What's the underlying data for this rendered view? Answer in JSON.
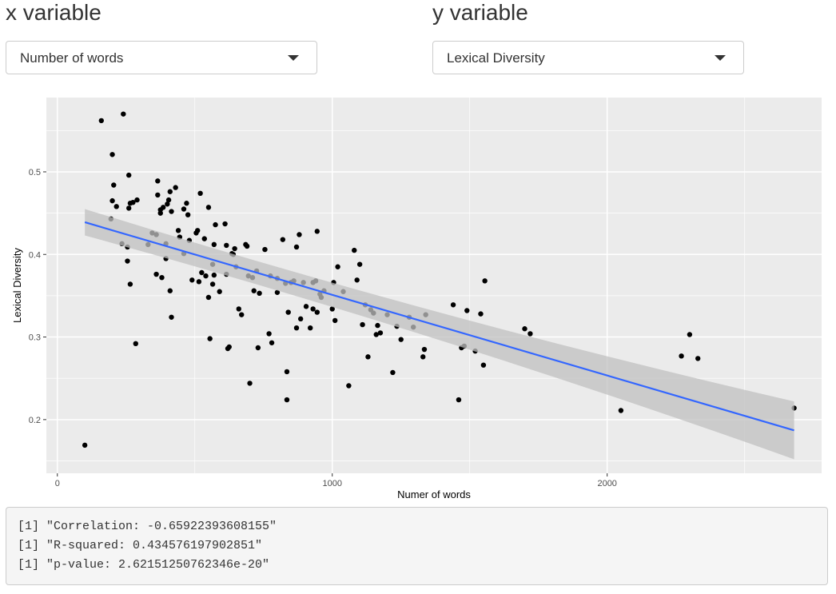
{
  "controls": {
    "x_label": "x variable",
    "x_value": "Number of words",
    "y_label": "y variable",
    "y_value": "Lexical Diversity"
  },
  "output_lines": [
    "[1] \"Correlation: -0.65922393608155\"",
    "[1] \"R-squared: 0.434576197902851\"",
    "[1] \"p-value: 2.62151250762346e-20\""
  ],
  "colors": {
    "panel": "#ebebeb",
    "grid": "#ffffff",
    "point": "#000000",
    "line": "#3366ff",
    "ribbon": "#c0c0c0"
  },
  "chart_data": {
    "type": "scatter",
    "xlabel": "Numer of words",
    "ylabel": "Lexical Diversity",
    "xlim": [
      -40,
      2780
    ],
    "ylim": [
      0.135,
      0.59
    ],
    "xticks": [
      0,
      1000,
      2000
    ],
    "yticks": [
      0.2,
      0.3,
      0.4,
      0.5
    ],
    "grid": true,
    "points": [
      [
        100,
        0.169
      ],
      [
        160,
        0.562
      ],
      [
        240,
        0.57
      ],
      [
        200,
        0.521
      ],
      [
        195,
        0.443
      ],
      [
        205,
        0.484
      ],
      [
        200,
        0.465
      ],
      [
        215,
        0.458
      ],
      [
        235,
        0.413
      ],
      [
        255,
        0.409
      ],
      [
        255,
        0.392
      ],
      [
        260,
        0.496
      ],
      [
        260,
        0.456
      ],
      [
        265,
        0.462
      ],
      [
        265,
        0.364
      ],
      [
        275,
        0.463
      ],
      [
        285,
        0.292
      ],
      [
        290,
        0.466
      ],
      [
        330,
        0.412
      ],
      [
        345,
        0.426
      ],
      [
        360,
        0.376
      ],
      [
        360,
        0.424
      ],
      [
        365,
        0.472
      ],
      [
        365,
        0.489
      ],
      [
        375,
        0.454
      ],
      [
        375,
        0.45
      ],
      [
        380,
        0.372
      ],
      [
        385,
        0.457
      ],
      [
        395,
        0.413
      ],
      [
        395,
        0.395
      ],
      [
        400,
        0.461
      ],
      [
        405,
        0.466
      ],
      [
        410,
        0.356
      ],
      [
        410,
        0.476
      ],
      [
        415,
        0.324
      ],
      [
        415,
        0.452
      ],
      [
        430,
        0.481
      ],
      [
        440,
        0.429
      ],
      [
        445,
        0.421
      ],
      [
        460,
        0.455
      ],
      [
        460,
        0.401
      ],
      [
        470,
        0.462
      ],
      [
        475,
        0.448
      ],
      [
        480,
        0.417
      ],
      [
        490,
        0.369
      ],
      [
        505,
        0.426
      ],
      [
        510,
        0.429
      ],
      [
        515,
        0.367
      ],
      [
        520,
        0.474
      ],
      [
        525,
        0.378
      ],
      [
        535,
        0.419
      ],
      [
        540,
        0.374
      ],
      [
        550,
        0.348
      ],
      [
        550,
        0.457
      ],
      [
        555,
        0.298
      ],
      [
        565,
        0.364
      ],
      [
        565,
        0.388
      ],
      [
        570,
        0.375
      ],
      [
        570,
        0.412
      ],
      [
        575,
        0.436
      ],
      [
        590,
        0.355
      ],
      [
        610,
        0.437
      ],
      [
        615,
        0.376
      ],
      [
        615,
        0.411
      ],
      [
        620,
        0.286
      ],
      [
        625,
        0.288
      ],
      [
        635,
        0.401
      ],
      [
        640,
        0.4
      ],
      [
        645,
        0.407
      ],
      [
        650,
        0.385
      ],
      [
        660,
        0.334
      ],
      [
        670,
        0.327
      ],
      [
        685,
        0.412
      ],
      [
        690,
        0.41
      ],
      [
        695,
        0.374
      ],
      [
        700,
        0.244
      ],
      [
        710,
        0.372
      ],
      [
        715,
        0.356
      ],
      [
        725,
        0.38
      ],
      [
        730,
        0.287
      ],
      [
        735,
        0.353
      ],
      [
        755,
        0.406
      ],
      [
        770,
        0.304
      ],
      [
        775,
        0.374
      ],
      [
        780,
        0.293
      ],
      [
        800,
        0.371
      ],
      [
        800,
        0.354
      ],
      [
        820,
        0.418
      ],
      [
        830,
        0.365
      ],
      [
        835,
        0.258
      ],
      [
        835,
        0.224
      ],
      [
        840,
        0.33
      ],
      [
        850,
        0.366
      ],
      [
        860,
        0.368
      ],
      [
        870,
        0.311
      ],
      [
        870,
        0.409
      ],
      [
        880,
        0.424
      ],
      [
        885,
        0.322
      ],
      [
        895,
        0.366
      ],
      [
        905,
        0.337
      ],
      [
        920,
        0.311
      ],
      [
        930,
        0.366
      ],
      [
        930,
        0.334
      ],
      [
        940,
        0.368
      ],
      [
        945,
        0.428
      ],
      [
        945,
        0.33
      ],
      [
        955,
        0.352
      ],
      [
        960,
        0.348
      ],
      [
        970,
        0.356
      ],
      [
        1000,
        0.334
      ],
      [
        1005,
        0.366
      ],
      [
        1010,
        0.32
      ],
      [
        1020,
        0.385
      ],
      [
        1040,
        0.355
      ],
      [
        1060,
        0.241
      ],
      [
        1080,
        0.405
      ],
      [
        1090,
        0.369
      ],
      [
        1100,
        0.388
      ],
      [
        1110,
        0.315
      ],
      [
        1120,
        0.339
      ],
      [
        1130,
        0.276
      ],
      [
        1140,
        0.333
      ],
      [
        1150,
        0.329
      ],
      [
        1160,
        0.303
      ],
      [
        1165,
        0.314
      ],
      [
        1175,
        0.305
      ],
      [
        1200,
        0.327
      ],
      [
        1220,
        0.257
      ],
      [
        1235,
        0.313
      ],
      [
        1250,
        0.297
      ],
      [
        1280,
        0.324
      ],
      [
        1295,
        0.312
      ],
      [
        1330,
        0.276
      ],
      [
        1335,
        0.285
      ],
      [
        1340,
        0.327
      ],
      [
        1440,
        0.339
      ],
      [
        1460,
        0.224
      ],
      [
        1470,
        0.287
      ],
      [
        1480,
        0.289
      ],
      [
        1490,
        0.332
      ],
      [
        1520,
        0.283
      ],
      [
        1540,
        0.328
      ],
      [
        1550,
        0.266
      ],
      [
        1555,
        0.368
      ],
      [
        1700,
        0.31
      ],
      [
        1720,
        0.304
      ],
      [
        2050,
        0.211
      ],
      [
        2270,
        0.277
      ],
      [
        2300,
        0.303
      ],
      [
        2330,
        0.274
      ],
      [
        2680,
        0.214
      ]
    ],
    "fit": {
      "x": [
        100,
        2680
      ],
      "y": [
        0.439,
        0.187
      ],
      "ribbon_lower": [
        0.423,
        0.152
      ],
      "ribbon_upper": [
        0.455,
        0.222
      ]
    }
  }
}
